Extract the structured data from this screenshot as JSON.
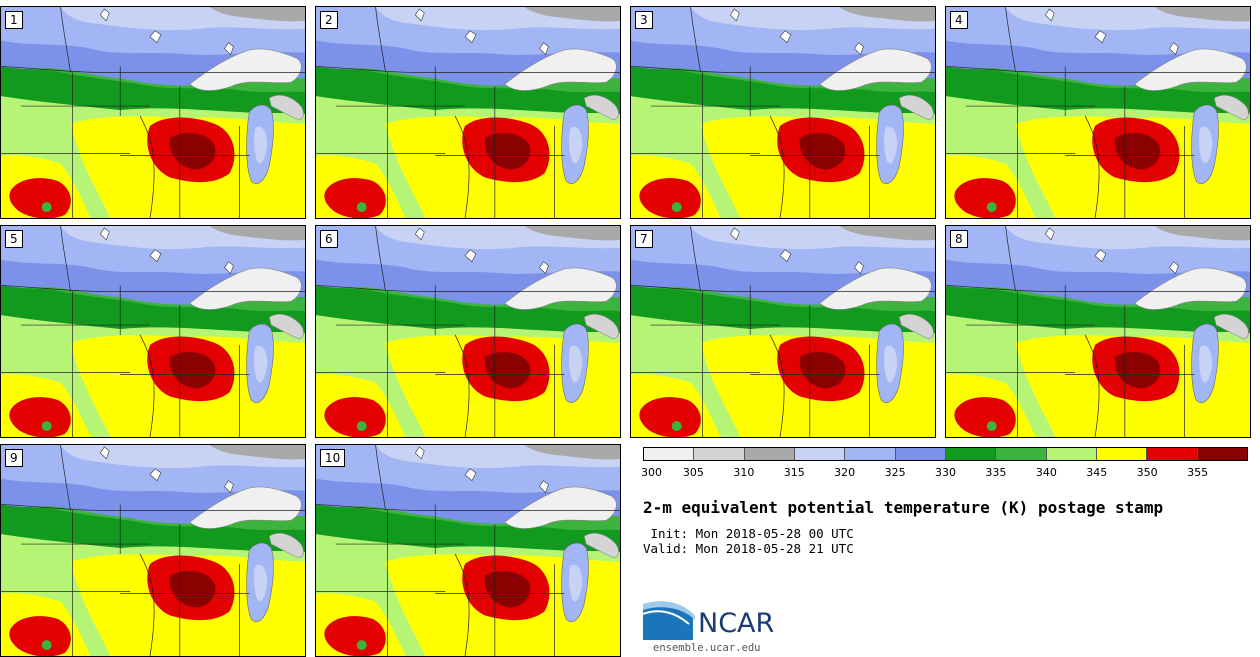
{
  "panels": [
    {
      "label": "1"
    },
    {
      "label": "2"
    },
    {
      "label": "3"
    },
    {
      "label": "4"
    },
    {
      "label": "5"
    },
    {
      "label": "6"
    },
    {
      "label": "7"
    },
    {
      "label": "8"
    },
    {
      "label": "9"
    },
    {
      "label": "10"
    }
  ],
  "colorbar": {
    "colors": [
      "#f0f0f0",
      "#d4d4d4",
      "#a9a9a9",
      "#c8d2f5",
      "#a2b5f5",
      "#7b91ea",
      "#119a1d",
      "#3cb33d",
      "#b6f475",
      "#ffff00",
      "#e30000",
      "#8b0000"
    ],
    "tick_labels": [
      "300",
      "305",
      "310",
      "315",
      "320",
      "325",
      "330",
      "335",
      "340",
      "345",
      "350",
      "355"
    ]
  },
  "title": "2-m equivalent potential temperature (K) postage stamp",
  "init_line": " Init: Mon 2018-05-28 00 UTC",
  "valid_line": "Valid: Mon 2018-05-28 21 UTC",
  "logo": {
    "text": "NCAR",
    "brand_color": "#1a3c72"
  },
  "website": "ensemble.ucar.edu"
}
